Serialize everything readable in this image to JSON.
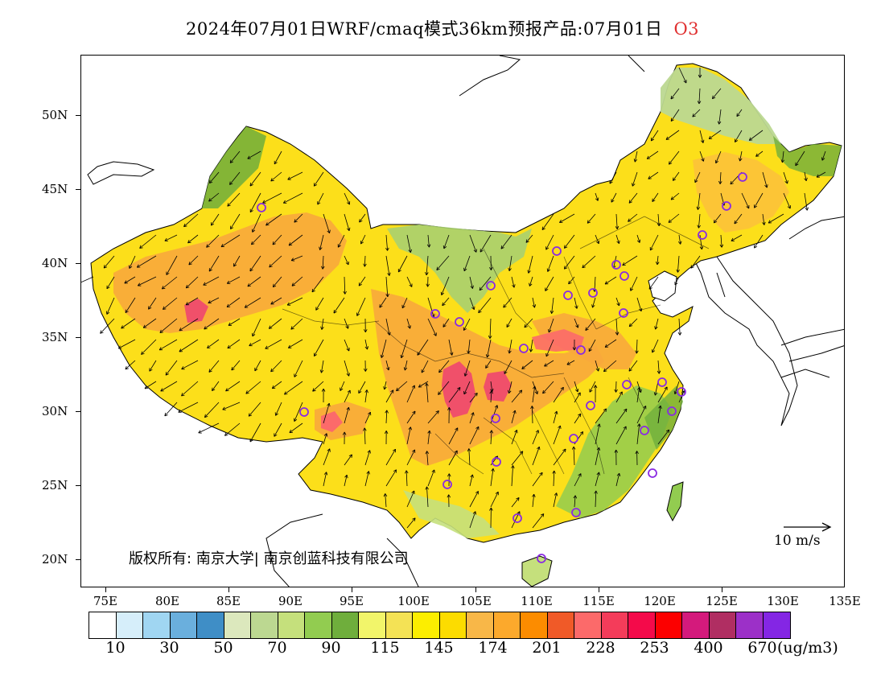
{
  "title": {
    "main": "2024年07月01日WRF/cmaq模式36km预报产品:07月01日",
    "species": "O3"
  },
  "map": {
    "y_ticks": [
      "50N",
      "45N",
      "40N",
      "35N",
      "30N",
      "25N",
      "20N"
    ],
    "x_ticks": [
      "75E",
      "80E",
      "85E",
      "90E",
      "95E",
      "100E",
      "105E",
      "110E",
      "115E",
      "120E",
      "125E",
      "130E",
      "135E"
    ],
    "copyright": "版权所有: 南京大学| 南京创蓝科技有限公司",
    "wind_reference": "10 m/s"
  },
  "legend": {
    "colors": [
      "#ffffff",
      "#d6eefa",
      "#a0d6f2",
      "#6aafdd",
      "#3f8ec6",
      "#dce8bd",
      "#bcd891",
      "#c5e07c",
      "#92cc50",
      "#6fae3c",
      "#f2f56a",
      "#f4e255",
      "#fcee00",
      "#fcdc00",
      "#f8b748",
      "#fca92c",
      "#fc8c00",
      "#f05a28",
      "#fc6a6a",
      "#f43c5a",
      "#f40a4a",
      "#fc0000",
      "#d41a7c",
      "#b02e62",
      "#9c30c8",
      "#8426e4"
    ],
    "labels": [
      "10",
      "30",
      "50",
      "70",
      "90",
      "115",
      "145",
      "174",
      "201",
      "228",
      "253",
      "400",
      "670"
    ],
    "unit": "(ug/m3)"
  },
  "overlay_colors": {
    "high_core": "#f0506a",
    "orange": "#f8a83c",
    "station_circle": "#8a2be2"
  }
}
